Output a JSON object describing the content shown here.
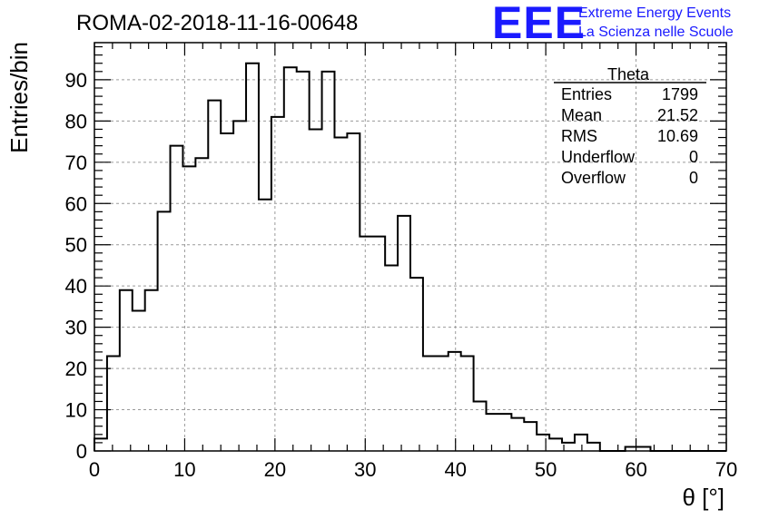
{
  "page": {
    "title": "ROMA-02-2018-11-16-00648"
  },
  "brand": {
    "logo": "EEE",
    "line1": "Extreme Energy Events",
    "line2": "La Scienza nelle Scuole",
    "color": "#1a1aff"
  },
  "stats": {
    "title": "Theta",
    "rows": [
      {
        "label": "Entries",
        "value": "1799"
      },
      {
        "label": "Mean",
        "value": "21.52"
      },
      {
        "label": "RMS",
        "value": "10.69"
      },
      {
        "label": "Underflow",
        "value": "0"
      },
      {
        "label": "Overflow",
        "value": "0"
      }
    ]
  },
  "chart_data": {
    "type": "histogram",
    "title": "ROMA-02-2018-11-16-00648",
    "xlabel": "θ [°]",
    "ylabel": "Entries/bin",
    "xlim": [
      0,
      70
    ],
    "ylim": [
      0,
      99
    ],
    "bin_width": 1.4,
    "xticks": [
      0,
      10,
      20,
      30,
      40,
      50,
      60,
      70
    ],
    "yticks": [
      0,
      10,
      20,
      30,
      40,
      50,
      60,
      70,
      80,
      90
    ],
    "grid": true,
    "values": [
      3,
      23,
      39,
      34,
      39,
      58,
      74,
      69,
      71,
      85,
      77,
      80,
      94,
      61,
      81,
      93,
      92,
      78,
      92,
      76,
      77,
      52,
      52,
      45,
      57,
      42,
      23,
      23,
      24,
      23,
      12,
      9,
      9,
      8,
      7,
      4,
      3,
      2,
      4,
      2,
      0,
      0,
      1,
      1,
      0,
      0,
      0,
      0,
      0,
      0
    ]
  }
}
